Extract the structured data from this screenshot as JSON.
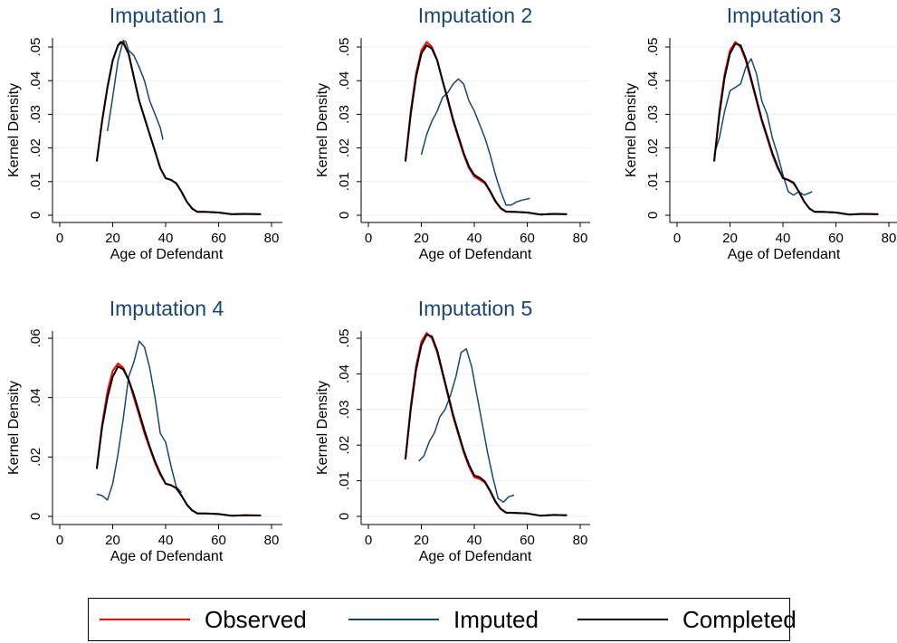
{
  "chart_data": [
    {
      "type": "line",
      "title": "Imputation 1",
      "xlabel": "Age of Defendant",
      "ylabel": "Kernel Density",
      "xlim": [
        0,
        80
      ],
      "ylim": [
        0,
        0.05
      ],
      "xticks": [
        0,
        20,
        40,
        60,
        80
      ],
      "xtick_labels": [
        "0",
        "20",
        "40",
        "60",
        "80"
      ],
      "yticks": [
        0,
        0.01,
        0.02,
        0.03,
        0.04,
        0.05
      ],
      "ytick_labels": [
        "0",
        ".01",
        ".02",
        ".03",
        ".04",
        ".05"
      ],
      "grid": true,
      "series": [
        {
          "name": "Observed",
          "x": [
            14,
            16,
            18,
            20,
            22,
            24,
            26,
            28,
            30,
            32,
            34,
            36,
            38,
            40,
            42,
            44,
            46,
            48,
            50,
            52,
            55,
            60,
            65,
            70,
            76
          ],
          "y": [
            0.016,
            0.028,
            0.038,
            0.046,
            0.0505,
            0.0515,
            0.048,
            0.041,
            0.034,
            0.029,
            0.024,
            0.019,
            0.014,
            0.011,
            0.0105,
            0.0095,
            0.007,
            0.004,
            0.002,
            0.001,
            0.001,
            0.0008,
            0.0003,
            0.0004,
            0.0003
          ]
        },
        {
          "name": "Imputed",
          "x": [
            18,
            20,
            22,
            24,
            25,
            26,
            28,
            30,
            32,
            34,
            36,
            38,
            39
          ],
          "y": [
            0.025,
            0.035,
            0.046,
            0.052,
            0.0515,
            0.049,
            0.0475,
            0.044,
            0.04,
            0.034,
            0.03,
            0.026,
            0.0225
          ]
        },
        {
          "name": "Completed",
          "x": [
            14,
            16,
            18,
            20,
            22,
            23,
            24,
            26,
            28,
            30,
            32,
            34,
            36,
            38,
            40,
            42,
            44,
            46,
            48,
            50,
            52,
            55,
            60,
            65,
            70,
            76
          ],
          "y": [
            0.016,
            0.028,
            0.038,
            0.046,
            0.0505,
            0.0515,
            0.0512,
            0.048,
            0.041,
            0.034,
            0.029,
            0.024,
            0.019,
            0.014,
            0.011,
            0.0105,
            0.0095,
            0.007,
            0.004,
            0.002,
            0.001,
            0.001,
            0.0008,
            0.0003,
            0.0004,
            0.0003
          ]
        }
      ]
    },
    {
      "type": "line",
      "title": "Imputation 2",
      "xlabel": "Age of Defendant",
      "ylabel": "Kernel Density",
      "xlim": [
        0,
        80
      ],
      "ylim": [
        0,
        0.05
      ],
      "xticks": [
        0,
        20,
        40,
        60,
        80
      ],
      "xtick_labels": [
        "0",
        "20",
        "40",
        "60",
        "80"
      ],
      "yticks": [
        0,
        0.01,
        0.02,
        0.03,
        0.04,
        0.05
      ],
      "ytick_labels": [
        "0",
        ".01",
        ".02",
        ".03",
        ".04",
        ".05"
      ],
      "grid": true,
      "series": [
        {
          "name": "Observed",
          "x": [
            14,
            16,
            18,
            20,
            22,
            24,
            26,
            28,
            30,
            32,
            34,
            36,
            38,
            40,
            42,
            44,
            46,
            48,
            50,
            52,
            55,
            60,
            65,
            70,
            75
          ],
          "y": [
            0.016,
            0.031,
            0.042,
            0.049,
            0.0515,
            0.05,
            0.046,
            0.04,
            0.034,
            0.028,
            0.023,
            0.018,
            0.014,
            0.0115,
            0.0105,
            0.0095,
            0.007,
            0.004,
            0.002,
            0.001,
            0.001,
            0.0008,
            0.0002,
            0.0004,
            0.0003
          ]
        },
        {
          "name": "Imputed",
          "x": [
            20,
            22,
            24,
            26,
            28,
            30,
            32,
            34,
            36,
            38,
            40,
            42,
            44,
            46,
            48,
            50,
            52,
            54,
            56,
            58,
            61
          ],
          "y": [
            0.018,
            0.024,
            0.028,
            0.031,
            0.035,
            0.0365,
            0.039,
            0.0405,
            0.039,
            0.034,
            0.031,
            0.027,
            0.023,
            0.018,
            0.012,
            0.007,
            0.003,
            0.003,
            0.004,
            0.0045,
            0.005
          ]
        },
        {
          "name": "Completed",
          "x": [
            14,
            16,
            18,
            20,
            22,
            24,
            26,
            28,
            30,
            32,
            34,
            36,
            38,
            40,
            42,
            44,
            46,
            48,
            50,
            52,
            55,
            60,
            65,
            70,
            75
          ],
          "y": [
            0.016,
            0.03,
            0.041,
            0.048,
            0.0505,
            0.0495,
            0.046,
            0.04,
            0.0345,
            0.0285,
            0.0235,
            0.0185,
            0.0145,
            0.012,
            0.011,
            0.0098,
            0.0072,
            0.0042,
            0.0021,
            0.0011,
            0.001,
            0.0008,
            0.0002,
            0.0004,
            0.0003
          ]
        }
      ]
    },
    {
      "type": "line",
      "title": "Imputation 3",
      "xlabel": "Age of Defendant",
      "ylabel": "Kernel Density",
      "xlim": [
        0,
        80
      ],
      "ylim": [
        0,
        0.05
      ],
      "xticks": [
        0,
        20,
        40,
        60,
        80
      ],
      "xtick_labels": [
        "0",
        "20",
        "40",
        "60",
        "80"
      ],
      "yticks": [
        0,
        0.01,
        0.02,
        0.03,
        0.04,
        0.05
      ],
      "ytick_labels": [
        "0",
        ".01",
        ".02",
        ".03",
        ".04",
        ".05"
      ],
      "grid": true,
      "series": [
        {
          "name": "Observed",
          "x": [
            14,
            16,
            18,
            20,
            22,
            24,
            26,
            28,
            30,
            32,
            34,
            36,
            38,
            40,
            42,
            44,
            46,
            48,
            50,
            52,
            55,
            60,
            65,
            70,
            76
          ],
          "y": [
            0.016,
            0.031,
            0.042,
            0.049,
            0.0515,
            0.05,
            0.046,
            0.04,
            0.034,
            0.028,
            0.023,
            0.018,
            0.014,
            0.0112,
            0.0104,
            0.0095,
            0.007,
            0.004,
            0.002,
            0.001,
            0.001,
            0.0008,
            0.0002,
            0.0004,
            0.0003
          ]
        },
        {
          "name": "Imputed",
          "x": [
            14,
            16,
            18,
            20,
            22,
            24,
            26,
            28,
            30,
            32,
            34,
            36,
            38,
            40,
            42,
            44,
            46,
            48,
            51
          ],
          "y": [
            0.018,
            0.023,
            0.031,
            0.037,
            0.038,
            0.039,
            0.044,
            0.0465,
            0.042,
            0.034,
            0.03,
            0.023,
            0.018,
            0.012,
            0.007,
            0.006,
            0.007,
            0.006,
            0.007
          ]
        },
        {
          "name": "Completed",
          "x": [
            14,
            16,
            18,
            20,
            22,
            24,
            26,
            28,
            30,
            32,
            34,
            36,
            38,
            40,
            42,
            44,
            46,
            48,
            50,
            52,
            55,
            60,
            65,
            70,
            76
          ],
          "y": [
            0.016,
            0.03,
            0.041,
            0.048,
            0.051,
            0.0505,
            0.0465,
            0.0405,
            0.0345,
            0.0285,
            0.0235,
            0.0185,
            0.0145,
            0.011,
            0.0105,
            0.0097,
            0.0071,
            0.0041,
            0.002,
            0.001,
            0.001,
            0.0008,
            0.0002,
            0.0004,
            0.0003
          ]
        }
      ]
    },
    {
      "type": "line",
      "title": "Imputation 4",
      "xlabel": "Age of Defendant",
      "ylabel": "Kernel Density",
      "xlim": [
        0,
        80
      ],
      "ylim": [
        0,
        0.06
      ],
      "xticks": [
        0,
        20,
        40,
        60,
        80
      ],
      "xtick_labels": [
        "0",
        "20",
        "40",
        "60",
        "80"
      ],
      "yticks": [
        0,
        0.02,
        0.04,
        0.06
      ],
      "ytick_labels": [
        "0",
        ".02",
        ".04",
        ".06"
      ],
      "grid": true,
      "series": [
        {
          "name": "Observed",
          "x": [
            14,
            16,
            18,
            20,
            22,
            24,
            26,
            28,
            30,
            32,
            34,
            36,
            38,
            40,
            42,
            44,
            46,
            48,
            50,
            52,
            55,
            60,
            65,
            70,
            76
          ],
          "y": [
            0.016,
            0.031,
            0.042,
            0.049,
            0.0515,
            0.05,
            0.046,
            0.04,
            0.034,
            0.028,
            0.023,
            0.018,
            0.014,
            0.011,
            0.0105,
            0.0095,
            0.007,
            0.004,
            0.002,
            0.001,
            0.001,
            0.0008,
            0.0002,
            0.0004,
            0.0003
          ]
        },
        {
          "name": "Imputed",
          "x": [
            14,
            16,
            18,
            20,
            22,
            24,
            26,
            28,
            30,
            32,
            34,
            36,
            38,
            40,
            42,
            44,
            46
          ],
          "y": [
            0.0075,
            0.007,
            0.0055,
            0.011,
            0.021,
            0.033,
            0.047,
            0.052,
            0.059,
            0.057,
            0.05,
            0.04,
            0.028,
            0.025,
            0.017,
            0.01,
            0.008
          ]
        },
        {
          "name": "Completed",
          "x": [
            14,
            16,
            18,
            20,
            22,
            24,
            26,
            28,
            30,
            32,
            34,
            36,
            38,
            40,
            42,
            44,
            46,
            48,
            50,
            52,
            55,
            60,
            65,
            70,
            76
          ],
          "y": [
            0.016,
            0.03,
            0.04,
            0.047,
            0.0505,
            0.0495,
            0.046,
            0.041,
            0.035,
            0.029,
            0.0235,
            0.0185,
            0.0145,
            0.011,
            0.0105,
            0.0095,
            0.007,
            0.004,
            0.002,
            0.001,
            0.001,
            0.0008,
            0.0002,
            0.0004,
            0.0003
          ]
        }
      ]
    },
    {
      "type": "line",
      "title": "Imputation 5",
      "xlabel": "Age of Defendant",
      "ylabel": "Kernel Density",
      "xlim": [
        0,
        80
      ],
      "ylim": [
        0,
        0.05
      ],
      "xticks": [
        0,
        20,
        40,
        60,
        80
      ],
      "xtick_labels": [
        "0",
        "20",
        "40",
        "60",
        "80"
      ],
      "yticks": [
        0,
        0.01,
        0.02,
        0.03,
        0.04,
        0.05
      ],
      "ytick_labels": [
        "0",
        ".01",
        ".02",
        ".03",
        ".04",
        ".05"
      ],
      "grid": true,
      "series": [
        {
          "name": "Observed",
          "x": [
            14,
            16,
            18,
            20,
            22,
            24,
            26,
            28,
            30,
            32,
            34,
            36,
            38,
            40,
            42,
            44,
            46,
            48,
            50,
            52,
            55,
            60,
            65,
            70,
            75
          ],
          "y": [
            0.016,
            0.031,
            0.042,
            0.049,
            0.0515,
            0.05,
            0.046,
            0.04,
            0.034,
            0.028,
            0.023,
            0.018,
            0.014,
            0.011,
            0.0105,
            0.0095,
            0.007,
            0.004,
            0.002,
            0.001,
            0.001,
            0.0008,
            0.0002,
            0.0004,
            0.0003
          ]
        },
        {
          "name": "Imputed",
          "x": [
            19,
            21,
            23,
            25,
            27,
            29,
            31,
            33,
            35,
            37,
            39,
            41,
            43,
            45,
            47,
            49,
            51,
            53,
            55
          ],
          "y": [
            0.0155,
            0.017,
            0.021,
            0.0235,
            0.028,
            0.03,
            0.034,
            0.039,
            0.046,
            0.047,
            0.042,
            0.034,
            0.026,
            0.018,
            0.011,
            0.005,
            0.004,
            0.0055,
            0.006
          ]
        },
        {
          "name": "Completed",
          "x": [
            14,
            16,
            18,
            20,
            22,
            24,
            26,
            28,
            30,
            32,
            34,
            36,
            38,
            40,
            42,
            44,
            46,
            48,
            50,
            52,
            55,
            60,
            65,
            70,
            75
          ],
          "y": [
            0.016,
            0.03,
            0.041,
            0.048,
            0.051,
            0.0505,
            0.0465,
            0.0405,
            0.0345,
            0.0285,
            0.0235,
            0.0185,
            0.0145,
            0.0115,
            0.011,
            0.0098,
            0.0072,
            0.0042,
            0.0021,
            0.0011,
            0.001,
            0.0008,
            0.0002,
            0.0004,
            0.0003
          ]
        }
      ]
    }
  ],
  "legend": {
    "items": [
      {
        "label": "Observed",
        "color": "#ff0000"
      },
      {
        "label": "Imputed",
        "color": "#1a476f"
      },
      {
        "label": "Completed",
        "color": "#000000"
      }
    ]
  },
  "colors": {
    "Observed": "#ff0000",
    "Imputed": "#1a476f",
    "Completed": "#000000",
    "title": "#1a476f",
    "grid": "#eaf2f3"
  }
}
